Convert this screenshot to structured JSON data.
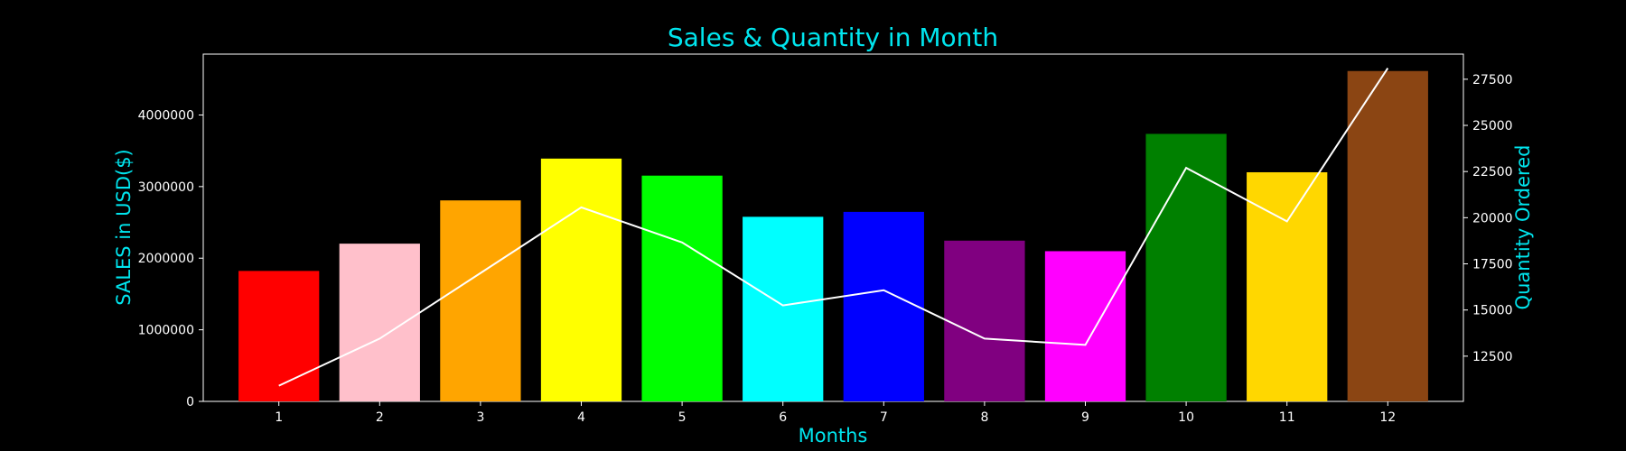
{
  "chart_data": {
    "type": "bar",
    "title": "Sales & Quantity in Month",
    "xlabel": "Months",
    "ylabel": "SALES in USD($)",
    "y2label": "Quantity Ordered",
    "categories": [
      "1",
      "2",
      "3",
      "4",
      "5",
      "6",
      "7",
      "8",
      "9",
      "10",
      "11",
      "12"
    ],
    "series": [
      {
        "type": "bar",
        "axis": "left",
        "values": [
          1822000,
          2203000,
          2807000,
          3391000,
          3153000,
          2578000,
          2647000,
          2245000,
          2098000,
          3736000,
          3200000,
          4614000
        ],
        "colors": [
          "#ff0000",
          "#ffc0cb",
          "#ffa500",
          "#ffff00",
          "#00ff00",
          "#00ffff",
          "#0000ff",
          "#800080",
          "#ff00ff",
          "#008000",
          "#ffd700",
          "#8b4513"
        ]
      },
      {
        "type": "line",
        "axis": "right",
        "values": [
          10900,
          13450,
          17000,
          20560,
          18660,
          15250,
          16070,
          13450,
          13110,
          22700,
          19800,
          28100
        ],
        "color": "#ffffff"
      }
    ],
    "ylim": [
      0,
      4850000
    ],
    "yticks": [
      0,
      1000000,
      2000000,
      3000000,
      4000000
    ],
    "y2lim": [
      10050,
      28860
    ],
    "y2ticks": [
      12500,
      15000,
      17500,
      20000,
      22500,
      25000,
      27500
    ],
    "grid": false,
    "legend": "none"
  },
  "colors": {
    "background": "#000000",
    "axes": "#ffffff",
    "title": "#00e5ee"
  }
}
